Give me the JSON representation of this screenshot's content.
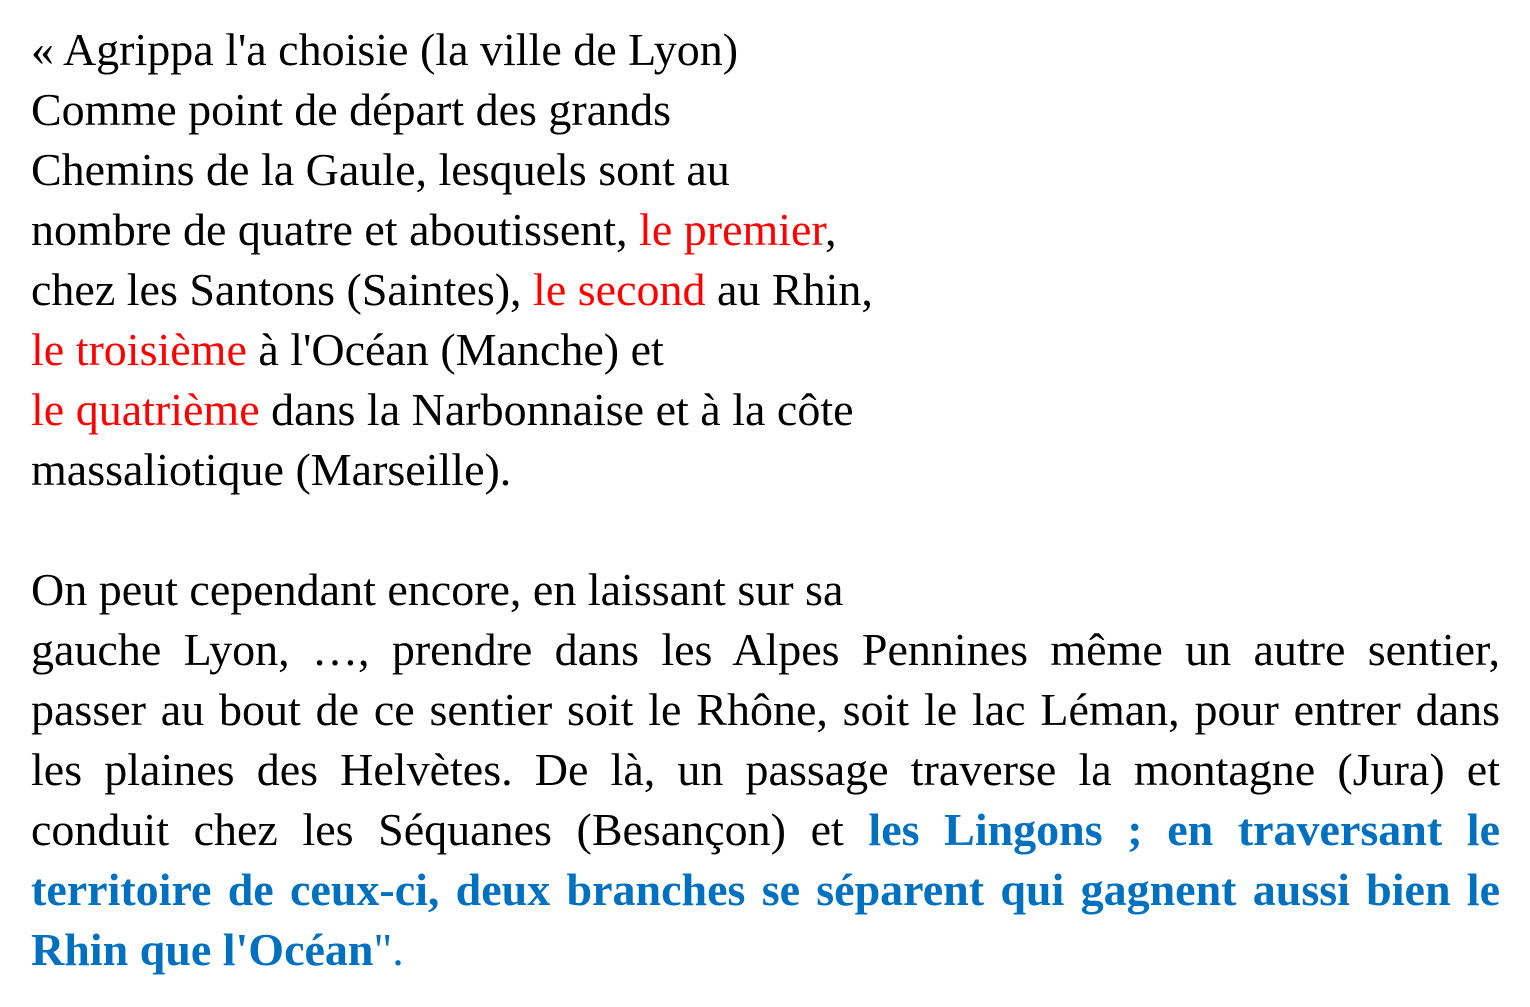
{
  "colors": {
    "highlight_red": "#ff0000",
    "highlight_blue": "#0070c0"
  },
  "quote": {
    "lines": [
      "« Agrippa l'a choisie (la ville de Lyon)",
      "Comme point de départ des grands",
      "Chemins de la Gaule, lesquels sont au",
      "nombre de quatre et aboutissent, ",
      "le premier",
      ",",
      "chez les Santons (Saintes), ",
      "le second",
      " au Rhin,",
      "le troisième",
      " à l'Océan (Manche) et",
      "le quatrième",
      " dans la Narbonnaise et à la côte",
      "massaliotique (Marseille)."
    ]
  },
  "paragraph2": {
    "line1": "On peut cependant encore, en laissant sur sa",
    "body": "gauche Lyon, …, prendre dans les Alpes Pennines même un autre sentier, passer au bout de ce sentier soit le Rhône, soit le lac Léman, pour entrer dans les plaines des Helvètes. De là, un passage traverse la montagne (Jura) et conduit chez les Séquanes (Besançon) et ",
    "highlight": "les Lingons ; en traversant le territoire de ceux-ci, deux branches se séparent qui gagnent aussi bien le Rhin que l'Océan",
    "end_quote": "\"",
    "end_period": "."
  }
}
